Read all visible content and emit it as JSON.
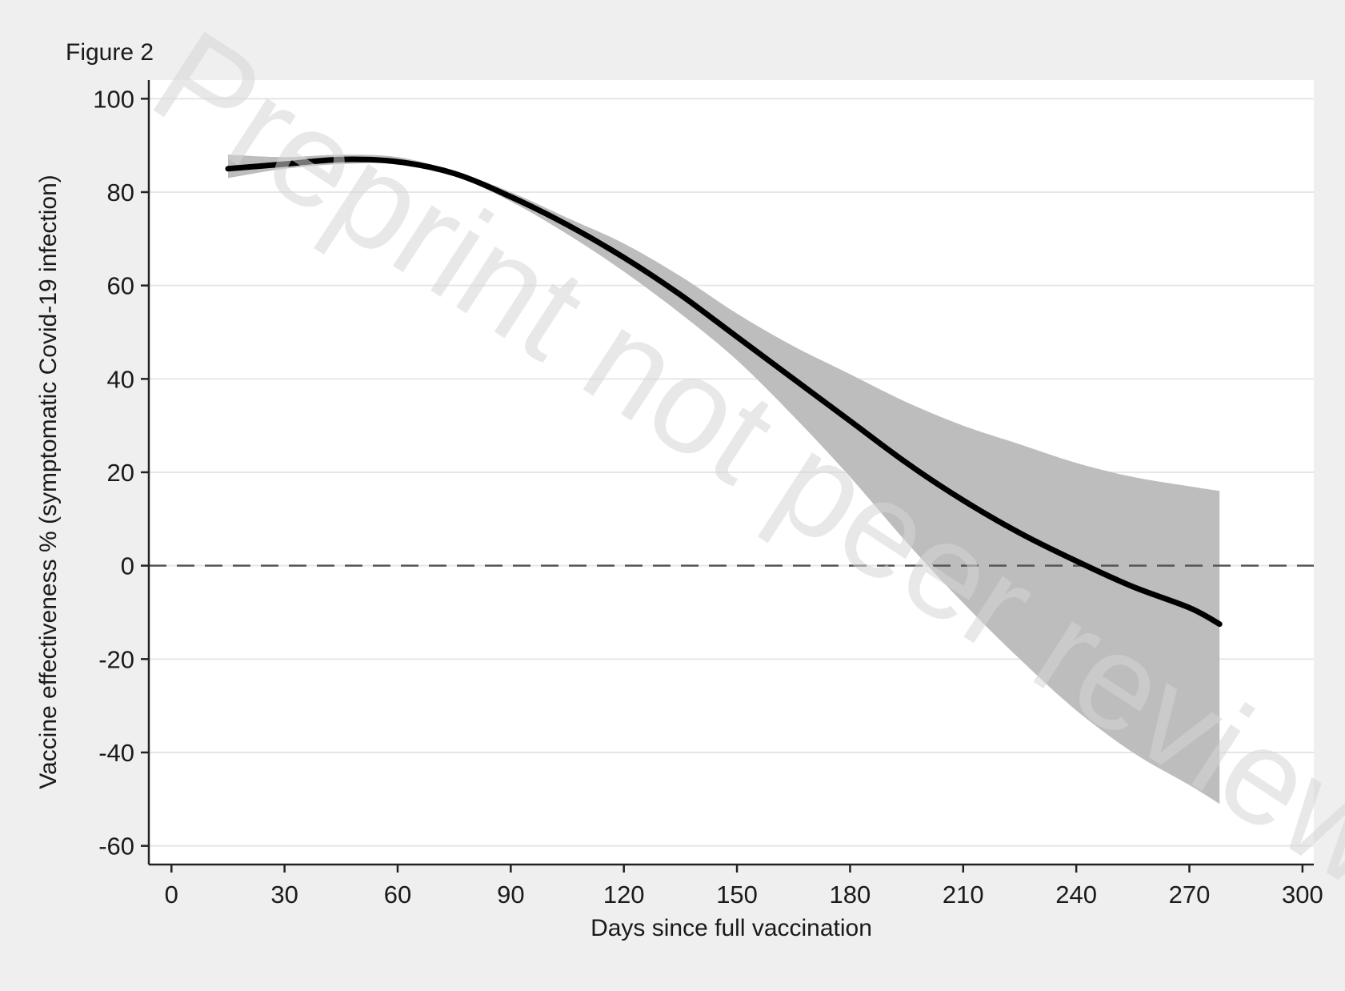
{
  "figure_label": "Figure 2",
  "watermark": "Preprint not peer reviewed",
  "colors": {
    "background": "#efefef",
    "plot_area": "#ffffff",
    "gridline": "#e6e6e6",
    "line": "#000000",
    "ci_band": "#bdbdbd",
    "reference_line": "#555555"
  },
  "chart_data": {
    "type": "line",
    "title": "",
    "xlabel": "Days since full vaccination",
    "ylabel": "Vaccine effectiveness % (symptomatic Covid-19 infection)",
    "xlim": [
      -6,
      303
    ],
    "ylim": [
      -64,
      104
    ],
    "xticks": [
      0,
      30,
      60,
      90,
      120,
      150,
      180,
      210,
      240,
      270,
      300
    ],
    "yticks": [
      -60,
      -40,
      -20,
      0,
      20,
      40,
      60,
      80,
      100
    ],
    "grid": "horizontal",
    "reference_line_y": 0,
    "series": [
      {
        "x": [
          15,
          30,
          45,
          60,
          75,
          90,
          105,
          120,
          135,
          150,
          165,
          180,
          195,
          210,
          225,
          240,
          255,
          270,
          278
        ],
        "y": [
          85,
          86,
          87,
          86.5,
          84,
          79,
          73,
          66,
          58,
          49,
          40,
          31,
          22,
          14,
          7,
          1,
          -4.5,
          -9,
          -12.5
        ],
        "lower": [
          83,
          85,
          86,
          86,
          83.5,
          78,
          71,
          63,
          54,
          44,
          32,
          19,
          5,
          -8,
          -20,
          -31,
          -40,
          -47,
          -51
        ],
        "upper": [
          88,
          87.5,
          88,
          87.5,
          84.5,
          80,
          74.5,
          69,
          62,
          54,
          47,
          41,
          35,
          30,
          26,
          22,
          19,
          17,
          16
        ]
      }
    ]
  }
}
